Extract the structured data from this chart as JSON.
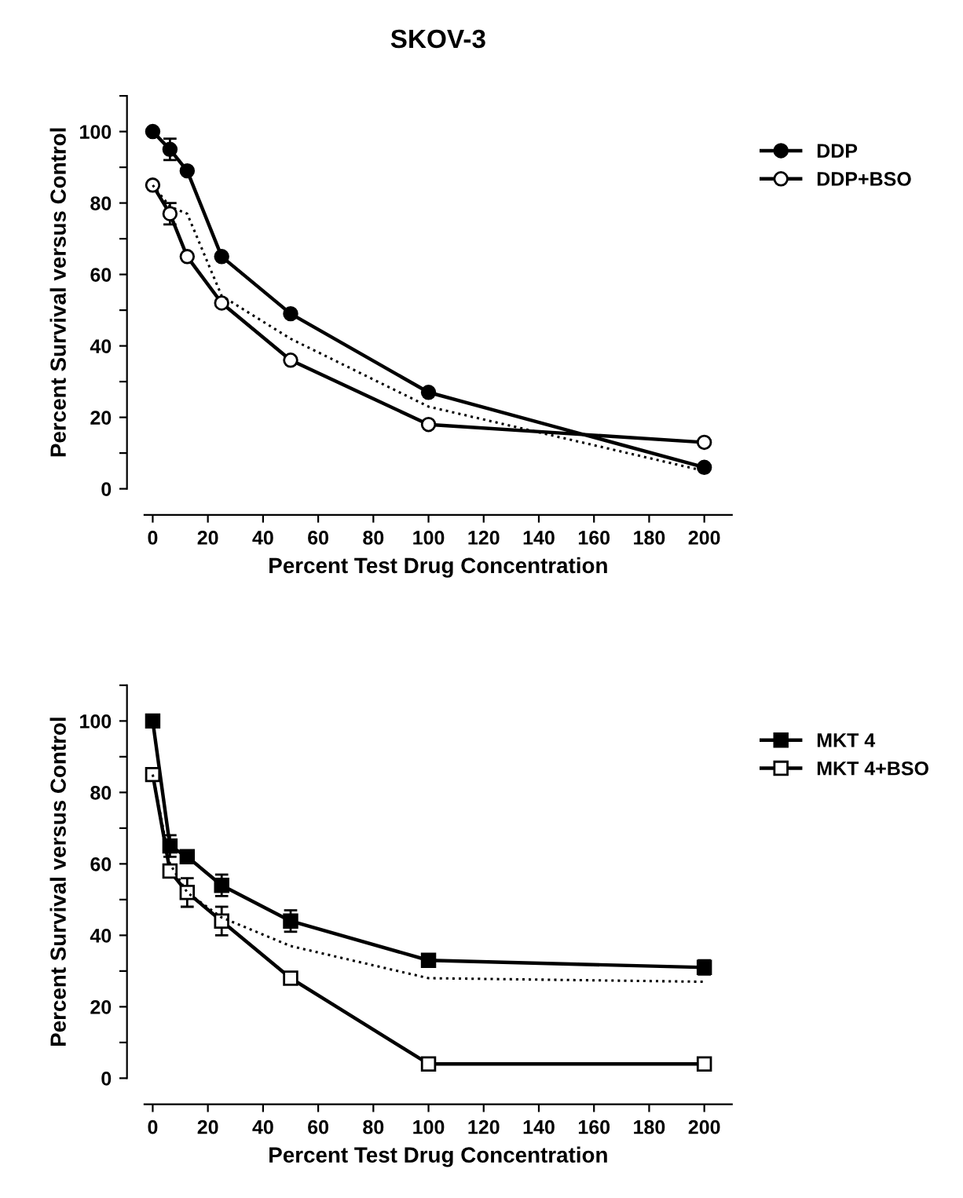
{
  "chart_data": [
    {
      "type": "line",
      "title": "SKOV-3",
      "xlabel": "Percent Test Drug Concentration",
      "ylabel": "Percent Survival versus Control",
      "x": [
        0,
        6.25,
        12.5,
        25,
        50,
        100,
        200
      ],
      "xlim": [
        -3,
        210
      ],
      "ylim": [
        0,
        110
      ],
      "xticks": [
        0,
        20,
        40,
        60,
        80,
        100,
        120,
        140,
        160,
        180,
        200
      ],
      "yticks": [
        0,
        {
          "value": 10,
          "label": null
        },
        20,
        {
          "value": 30,
          "label": null
        },
        40,
        {
          "value": 50,
          "label": null
        },
        60,
        {
          "value": 70,
          "label": null
        },
        80,
        {
          "value": 90,
          "label": null
        },
        100,
        {
          "value": 110,
          "label": null
        }
      ],
      "legend": "right",
      "grid": false,
      "series": [
        {
          "name": "DDP",
          "color": "#000000",
          "marker": "circle",
          "line_style": "solid",
          "values": [
            100,
            95,
            89,
            65,
            49,
            27,
            6
          ],
          "errors": [
            null,
            3,
            null,
            null,
            null,
            null,
            null
          ]
        },
        {
          "name": "DDP+BSO",
          "color": "#000000",
          "marker": "circle",
          "line_style": "solid",
          "values": [
            85,
            77,
            65,
            52,
            36,
            18,
            13
          ],
          "errors": [
            null,
            3,
            null,
            null,
            null,
            null,
            null
          ]
        },
        {
          "color": "#000000",
          "marker": "none",
          "line_style": "dotted",
          "values": [
            85,
            79,
            77,
            54,
            42,
            23,
            5
          ]
        }
      ]
    },
    {
      "type": "line",
      "xlabel": "Percent Test Drug Concentration",
      "ylabel": "Percent Survival versus Control",
      "x": [
        0,
        6.25,
        12.5,
        25,
        50,
        100,
        200
      ],
      "xlim": [
        -3,
        210
      ],
      "ylim": [
        0,
        110
      ],
      "xticks": [
        0,
        20,
        40,
        60,
        80,
        100,
        120,
        140,
        160,
        180,
        200
      ],
      "yticks": [
        0,
        {
          "value": 10,
          "label": null
        },
        20,
        {
          "value": 30,
          "label": null
        },
        40,
        {
          "value": 50,
          "label": null
        },
        60,
        {
          "value": 70,
          "label": null
        },
        80,
        {
          "value": 90,
          "label": null
        },
        100,
        {
          "value": 110,
          "label": null
        }
      ],
      "legend": "right",
      "grid": false,
      "series": [
        {
          "name": "MKT 4",
          "color": "#000000",
          "marker": "square",
          "line_style": "solid",
          "values": [
            100,
            65,
            62,
            54,
            44,
            33,
            31
          ],
          "errors": [
            null,
            3,
            null,
            3,
            3,
            null,
            2
          ]
        },
        {
          "name": "MKT 4+BSO",
          "color": "#000000",
          "marker": "square",
          "line_style": "solid",
          "values": [
            85,
            58,
            52,
            44,
            28,
            4,
            4
          ],
          "errors": [
            null,
            null,
            4,
            4,
            null,
            null,
            null
          ]
        },
        {
          "color": "#000000",
          "marker": "none",
          "line_style": "dotted",
          "values": [
            85,
            60,
            52,
            45,
            37,
            28,
            27
          ]
        }
      ]
    }
  ]
}
